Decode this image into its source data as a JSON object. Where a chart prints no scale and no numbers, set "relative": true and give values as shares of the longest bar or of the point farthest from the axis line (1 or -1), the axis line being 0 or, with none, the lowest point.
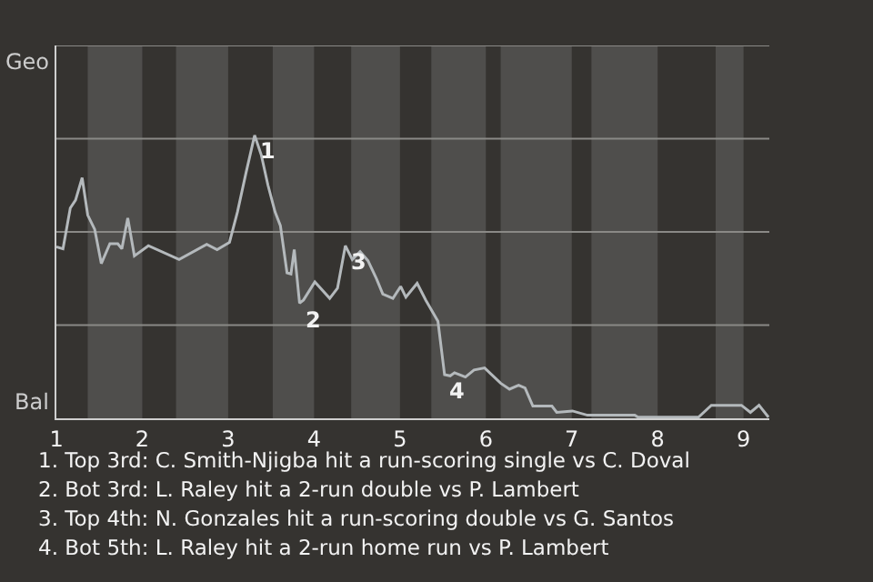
{
  "chart_data": {
    "type": "line",
    "relative": true,
    "x": [
      1.0,
      1.077,
      1.162,
      1.223,
      1.3,
      1.365,
      1.446,
      1.523,
      1.623,
      1.715,
      1.762,
      1.831,
      1.908,
      2.071,
      2.429,
      2.75,
      2.871,
      3.015,
      3.108,
      3.208,
      3.308,
      3.385,
      3.462,
      3.546,
      3.608,
      3.685,
      3.731,
      3.769,
      3.831,
      3.877,
      4.009,
      4.182,
      4.273,
      4.364,
      4.445,
      4.536,
      4.627,
      4.727,
      4.8,
      4.918,
      5.008,
      5.069,
      5.2,
      5.3,
      5.442,
      5.519,
      5.585,
      5.635,
      5.762,
      5.862,
      5.985,
      6.172,
      6.275,
      6.381,
      6.456,
      6.547,
      6.769,
      6.825,
      7.008,
      7.183,
      7.733,
      7.771,
      8.475,
      8.625,
      8.975,
      9.08,
      9.18,
      9.29
    ],
    "series": [
      {
        "color": "#b4b9bc",
        "values": [
          0.606,
          0.599,
          0.743,
          0.771,
          0.85,
          0.718,
          0.668,
          0.547,
          0.617,
          0.617,
          0.599,
          0.708,
          0.574,
          0.61,
          0.561,
          0.615,
          0.596,
          0.622,
          0.729,
          0.868,
          1,
          0.931,
          0.825,
          0.729,
          0.681,
          0.514,
          0.51,
          0.596,
          0.407,
          0.418,
          0.482,
          0.424,
          0.46,
          0.61,
          0.561,
          0.589,
          0.557,
          0.493,
          0.439,
          0.424,
          0.466,
          0.428,
          0.477,
          0.418,
          0.343,
          0.154,
          0.15,
          0.161,
          0.146,
          0.171,
          0.178,
          0.124,
          0.103,
          0.117,
          0.107,
          0.043,
          0.043,
          0.021,
          0.026,
          0.011,
          0.011,
          0.004,
          0.004,
          0.046,
          0.046,
          0.021,
          0.046,
          0.004
        ]
      }
    ],
    "xlim": [
      1,
      9.3
    ],
    "xticks": [
      1,
      2,
      3,
      4,
      5,
      6,
      7,
      8,
      9
    ],
    "ref_lines": [
      {
        "axis": "y",
        "value": 0.3294,
        "color": "#8a8986"
      },
      {
        "axis": "y",
        "value": 0.6588,
        "color": "#8a8986"
      },
      {
        "axis": "y",
        "value": 0.9881,
        "color": "#8a8986"
      },
      {
        "axis": "y",
        "value": 1.3175,
        "color": "#8a8986"
      }
    ],
    "marker": "none",
    "line_style": "solid",
    "bands": [
      {
        "axis": "x",
        "from": 1.365,
        "to": 2,
        "color": "#4f4e4c"
      },
      {
        "axis": "x",
        "from": 2.393,
        "to": 3,
        "color": "#4f4e4c"
      },
      {
        "axis": "x",
        "from": 3.519,
        "to": 4,
        "color": "#4f4e4c"
      },
      {
        "axis": "x",
        "from": 4.432,
        "to": 5,
        "color": "#4f4e4c"
      },
      {
        "axis": "x",
        "from": 5.365,
        "to": 6,
        "color": "#4f4e4c"
      },
      {
        "axis": "x",
        "from": 6.172,
        "to": 7,
        "color": "#4f4e4c"
      },
      {
        "axis": "x",
        "from": 7.229,
        "to": 8,
        "color": "#4f4e4c"
      },
      {
        "axis": "x",
        "from": 8.675,
        "to": 9,
        "color": "#4f4e4c"
      }
    ],
    "annotations": [
      {
        "text": "1",
        "x": 3.308,
        "y": 1
      },
      {
        "text": "2",
        "x": 3.831,
        "y": 0.407
      },
      {
        "text": "3",
        "x": 4.364,
        "y": 0.61
      },
      {
        "text": "4",
        "x": 5.519,
        "y": 0.154
      },
      "Geo",
      "Bal",
      "1. Top 3rd: C. Smith-Njigba hit a run-scoring single vs C. Doval",
      "2. Bot 3rd: L. Raley hit a 2-run double vs P. Lambert",
      "3. Top 4th: N. Gonzales hit a run-scoring double vs G. Santos",
      "4. Bot 5th: L. Raley hit a 2-run home run vs P. Lambert"
    ]
  }
}
